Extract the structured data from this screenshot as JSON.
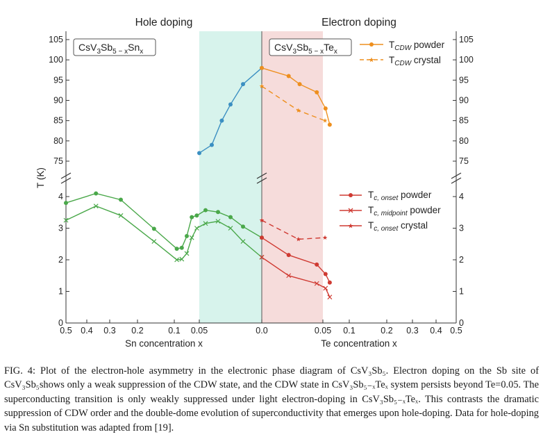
{
  "figure": {
    "panel_headers": {
      "left": "Hole doping",
      "right": "Electron doping"
    },
    "formula_sn": {
      "pre": "CsV",
      "s1": "3",
      "mid": "Sb",
      "s2": "5 − x",
      "el": "Sn",
      "s3": "x"
    },
    "formula_te": {
      "pre": "CsV",
      "s1": "3",
      "mid": "Sb",
      "s2": "5 − x",
      "el": "Te",
      "s3": "x"
    },
    "legend_cdw": [
      {
        "main": "T",
        "sub": "CDW",
        "suffix": " powder"
      },
      {
        "main": "T",
        "sub": "CDW",
        "suffix": " crystal"
      }
    ],
    "legend_sc": [
      {
        "main": "T",
        "sub": "c, onset",
        "suffix": " powder"
      },
      {
        "main": "T",
        "sub": "c, midpoint",
        "suffix": " powder"
      },
      {
        "main": "T",
        "sub": "c, onset",
        "suffix": " crystal"
      }
    ],
    "ylabel": "T (K)",
    "xlabel_left": "Sn concentration x",
    "xlabel_right": "Te concentration x",
    "colors": {
      "blue": "#3b8fc2",
      "green": "#4aa84a",
      "orange": "#ee8f1e",
      "red": "#cf3a32",
      "cyan_band": "#d7f3ec",
      "pink_band": "#f6dcdb"
    }
  },
  "chart_data": [
    {
      "type": "line",
      "panel": "hole doping, upper axis (CDW)",
      "x_scale": "nonlinear (axis reversed, expanded below 0.1)",
      "xlim": [
        0.5,
        0.0
      ],
      "ylim": [
        72,
        106
      ],
      "x_ticks": [
        "0.5",
        "0.4",
        "0.3",
        "0.2",
        "0.1",
        "0.05",
        "0.0"
      ],
      "y_ticks": [
        "75",
        "80",
        "85",
        "90",
        "95",
        "100",
        "105"
      ],
      "shaded_band_x": [
        0.05,
        0.0
      ],
      "series": [
        {
          "x": [
            0.05,
            0.04,
            0.032,
            0.025,
            0.015,
            0.0
          ],
          "y": [
            77,
            79,
            85,
            89,
            94,
            98
          ]
        }
      ]
    },
    {
      "type": "line",
      "panel": "hole doping, lower axis (superconductivity)",
      "x_scale": "nonlinear (axis reversed, expanded below 0.1)",
      "xlim": [
        0.5,
        0.0
      ],
      "ylim": [
        0,
        4.5
      ],
      "x_ticks": [
        "0.5",
        "0.4",
        "0.3",
        "0.2",
        "0.1",
        "0.05",
        "0.0"
      ],
      "y_ticks": [
        "0",
        "1",
        "2",
        "3",
        "4"
      ],
      "series": [
        {
          "x": [
            0.5,
            0.36,
            0.26,
            0.155,
            0.095,
            0.085,
            0.075,
            0.065,
            0.055,
            0.045,
            0.035,
            0.025,
            0.015,
            0.0
          ],
          "y": [
            3.8,
            4.1,
            3.9,
            2.98,
            2.35,
            2.38,
            2.75,
            3.35,
            3.4,
            3.57,
            3.51,
            3.35,
            3.05,
            2.7
          ]
        },
        {
          "x": [
            0.5,
            0.36,
            0.26,
            0.155,
            0.095,
            0.085,
            0.075,
            0.065,
            0.055,
            0.045,
            0.035,
            0.025,
            0.015,
            0.0
          ],
          "y": [
            3.25,
            3.7,
            3.4,
            2.58,
            2.0,
            2.02,
            2.2,
            2.7,
            3.0,
            3.15,
            3.22,
            3.0,
            2.58,
            2.08
          ]
        }
      ]
    },
    {
      "type": "line",
      "panel": "electron doping, upper axis (CDW)",
      "x_scale": "nonlinear (expanded below 0.1)",
      "xlim": [
        0.0,
        0.5
      ],
      "ylim": [
        72,
        106
      ],
      "x_ticks": [
        "0.0",
        "0.05",
        "0.1",
        "0.2",
        "0.3",
        "0.4",
        "0.5"
      ],
      "y_ticks": [
        "75",
        "80",
        "85",
        "90",
        "95",
        "100",
        "105"
      ],
      "shaded_band_x": [
        0.0,
        0.05
      ],
      "series": [
        {
          "name": "TCDW powder",
          "x": [
            0.0,
            0.022,
            0.031,
            0.045,
            0.055,
            0.063
          ],
          "y": [
            98,
            96,
            94,
            92,
            88,
            84
          ]
        },
        {
          "name": "TCDW crystal",
          "x": [
            0.0,
            0.03,
            0.054
          ],
          "y": [
            93.5,
            87.5,
            85
          ]
        }
      ]
    },
    {
      "type": "line",
      "panel": "electron doping, lower axis (superconductivity)",
      "x_scale": "nonlinear (expanded below 0.1)",
      "xlim": [
        0.0,
        0.5
      ],
      "ylim": [
        0,
        4.5
      ],
      "x_ticks": [
        "0.0",
        "0.05",
        "0.1",
        "0.2",
        "0.3",
        "0.4",
        "0.5"
      ],
      "y_ticks": [
        "0",
        "1",
        "2",
        "3",
        "4"
      ],
      "series": [
        {
          "name": "Tc, onset powder",
          "x": [
            0.0,
            0.022,
            0.045,
            0.055,
            0.063
          ],
          "y": [
            2.7,
            2.15,
            1.85,
            1.55,
            1.28
          ]
        },
        {
          "name": "Tc, midpoint powder",
          "x": [
            0.0,
            0.022,
            0.045,
            0.055,
            0.063
          ],
          "y": [
            2.08,
            1.5,
            1.25,
            1.1,
            0.82
          ]
        },
        {
          "name": "Tc, onset crystal",
          "x": [
            0.0,
            0.03,
            0.054
          ],
          "y": [
            3.25,
            2.65,
            2.7
          ]
        }
      ]
    }
  ],
  "caption": "FIG. 4: Plot of the electron-hole asymmetry in the electronic phase diagram of CsV₃Sb₅. Electron doping on the Sb site of CsV₃Sb₅shows only a weak suppression of the CDW state, and the CDW state in CsV₃Sb₅₋ₓTeₓ system persists beyond Te=0.05. The superconducting transition is only weakly suppressed under light electron-doping in CsV₃Sb₅₋ₓTeₓ. This contrasts the dramatic suppression of CDW order and the double-dome evolution of superconductivity that emerges upon hole-doping. Data for hole-doping via Sn substitution was adapted from [19]."
}
